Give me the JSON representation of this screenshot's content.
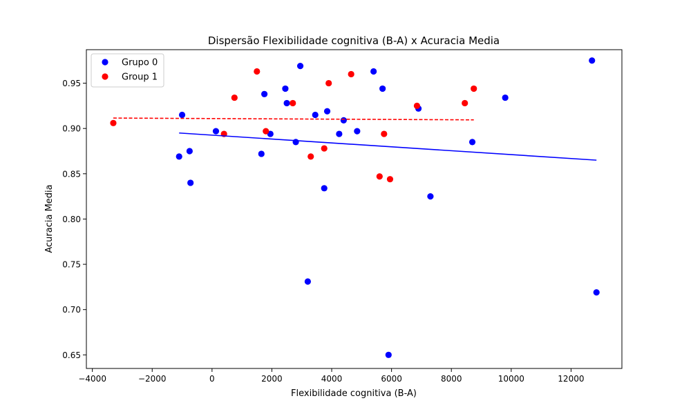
{
  "chart_data": {
    "type": "scatter",
    "title": "Dispersão Flexibilidade cognitiva (B-A) x Acuracia Media",
    "xlabel": "Flexibilidade cognitiva (B-A)",
    "ylabel": "Acuracia Media",
    "xlim": [
      -4200,
      13700
    ],
    "ylim": [
      0.635,
      0.987
    ],
    "xticks": [
      -4000,
      -2000,
      0,
      2000,
      4000,
      6000,
      8000,
      10000,
      12000
    ],
    "yticks": [
      0.65,
      0.7,
      0.75,
      0.8,
      0.85,
      0.9,
      0.95
    ],
    "xtick_labels": [
      "−4000",
      "−2000",
      "0",
      "2000",
      "4000",
      "6000",
      "8000",
      "10000",
      "12000"
    ],
    "ytick_labels": [
      "0.65",
      "0.70",
      "0.75",
      "0.80",
      "0.85",
      "0.90",
      "0.95"
    ],
    "grid": false,
    "legend_position": "upper-left",
    "series": [
      {
        "name": "Grupo 0",
        "color": "#0000ff",
        "points": [
          [
            -1100,
            0.869
          ],
          [
            -1000,
            0.915
          ],
          [
            -750,
            0.875
          ],
          [
            -720,
            0.84
          ],
          [
            130,
            0.897
          ],
          [
            1650,
            0.872
          ],
          [
            1750,
            0.938
          ],
          [
            1950,
            0.894
          ],
          [
            2450,
            0.944
          ],
          [
            2500,
            0.928
          ],
          [
            2800,
            0.885
          ],
          [
            2950,
            0.969
          ],
          [
            3200,
            0.731
          ],
          [
            3450,
            0.915
          ],
          [
            3750,
            0.834
          ],
          [
            3850,
            0.919
          ],
          [
            4250,
            0.894
          ],
          [
            4400,
            0.909
          ],
          [
            4850,
            0.897
          ],
          [
            5400,
            0.963
          ],
          [
            5700,
            0.944
          ],
          [
            5900,
            0.65
          ],
          [
            6900,
            0.922
          ],
          [
            7300,
            0.825
          ],
          [
            8700,
            0.885
          ],
          [
            9800,
            0.934
          ],
          [
            12700,
            0.975
          ],
          [
            12850,
            0.719
          ]
        ],
        "trend": {
          "x": [
            -1100,
            12850
          ],
          "y": [
            0.895,
            0.865
          ],
          "style": "solid"
        }
      },
      {
        "name": "Group 1",
        "color": "#ff0000",
        "points": [
          [
            -3300,
            0.906
          ],
          [
            400,
            0.894
          ],
          [
            750,
            0.934
          ],
          [
            1500,
            0.963
          ],
          [
            1800,
            0.897
          ],
          [
            2700,
            0.928
          ],
          [
            3300,
            0.869
          ],
          [
            3750,
            0.878
          ],
          [
            3900,
            0.95
          ],
          [
            4650,
            0.96
          ],
          [
            5600,
            0.847
          ],
          [
            5750,
            0.894
          ],
          [
            5950,
            0.844
          ],
          [
            6850,
            0.925
          ],
          [
            8450,
            0.928
          ],
          [
            8750,
            0.944
          ]
        ],
        "trend": {
          "x": [
            -3300,
            8750
          ],
          "y": [
            0.9115,
            0.9095
          ],
          "style": "dashed"
        }
      }
    ]
  }
}
